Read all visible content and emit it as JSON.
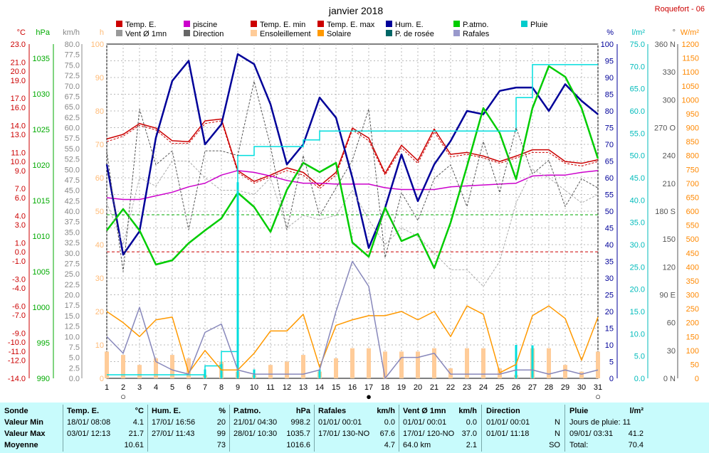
{
  "header": {
    "title": "janvier 2018",
    "station": "Roquefort - 06"
  },
  "legend": [
    {
      "label": "Temp. E.",
      "color": "#cc0000"
    },
    {
      "label": "piscine",
      "color": "#cc00cc"
    },
    {
      "label": "Temp. E. min",
      "color": "#cc0000"
    },
    {
      "label": "Temp. E. max",
      "color": "#cc0000"
    },
    {
      "label": "Hum. E.",
      "color": "#000099"
    },
    {
      "label": "P.atmo.",
      "color": "#00cc00"
    },
    {
      "label": "Pluie",
      "color": "#00cccc"
    },
    {
      "label": "Vent Ø 1mn",
      "color": "#999999"
    },
    {
      "label": "Direction",
      "color": "#666666"
    },
    {
      "label": "Ensoleillement",
      "color": "#ffcc99"
    },
    {
      "label": "Solaire",
      "color": "#ff9900"
    },
    {
      "label": "P. de rosée",
      "color": "#006666"
    },
    {
      "label": "Rafales",
      "color": "#9999cc"
    }
  ],
  "axis_units": {
    "temp": "°C",
    "press": "hPa",
    "wind": "km/h",
    "h": "h",
    "hum": "%",
    "rain": "l/m²",
    "dir": "°",
    "solar": "W/m²"
  },
  "chart_data": {
    "type": "line",
    "title": "janvier 2018",
    "x": [
      1,
      2,
      3,
      4,
      5,
      6,
      7,
      8,
      9,
      10,
      11,
      12,
      13,
      14,
      15,
      16,
      17,
      18,
      19,
      20,
      21,
      22,
      23,
      24,
      25,
      26,
      27,
      28,
      29,
      30,
      31
    ],
    "axes": {
      "temp": {
        "ticks": [
          "23.0",
          "21.0",
          "20.0",
          "19.0",
          "17.0",
          "16.0",
          "14.0",
          "13.0",
          "11.0",
          "10.0",
          "9.0",
          "7.0",
          "6.0",
          "4.0",
          "3.0",
          "1.0",
          "0.0",
          "-1.0",
          "-3.0",
          "-4.0",
          "-6.0",
          "-7.0",
          "-9.0",
          "-10.0",
          "-11.0",
          "-12.0",
          "-14.0"
        ],
        "range": [
          -14,
          23
        ]
      },
      "pressure": {
        "ticks": [
          "1035",
          "1030",
          "1025",
          "1020",
          "1015",
          "1010",
          "1005",
          "1000",
          "995",
          "990"
        ],
        "range": [
          990,
          1037
        ]
      },
      "wind": {
        "ticks": [
          "80.0",
          "77.5",
          "75.0",
          "72.5",
          "70.0",
          "67.5",
          "65.0",
          "62.5",
          "60.0",
          "57.5",
          "55.0",
          "52.5",
          "50.0",
          "47.5",
          "45.0",
          "42.5",
          "40.0",
          "37.5",
          "35.0",
          "32.5",
          "30.0",
          "27.5",
          "25.0",
          "22.5",
          "20.0",
          "17.5",
          "15.0",
          "12.5",
          "10.0",
          "7.5",
          "5.0",
          "2.5",
          "0.0"
        ],
        "range": [
          0,
          80
        ]
      },
      "sunshine": {
        "ticks": [
          "100",
          "90",
          "80",
          "70",
          "60",
          "50",
          "40",
          "30",
          "20",
          "10",
          "0"
        ],
        "range": [
          0,
          100
        ]
      },
      "humidity": {
        "ticks": [
          "100",
          "95",
          "90",
          "85",
          "80",
          "75",
          "70",
          "65",
          "60",
          "55",
          "50",
          "45",
          "40",
          "35",
          "30",
          "25",
          "20",
          "15",
          "10",
          "5",
          "0"
        ],
        "range": [
          0,
          100
        ]
      },
      "rain": {
        "ticks": [
          "75.0",
          "70.0",
          "65.0",
          "60.0",
          "55.0",
          "50.0",
          "45.0",
          "40.0",
          "35.0",
          "30.0",
          "25.0",
          "20.0",
          "15.0",
          "10.0",
          "5.0",
          "0.0"
        ],
        "range": [
          0,
          75
        ]
      },
      "direction": {
        "ticks": [
          "360 N",
          "330",
          "300",
          "270 O",
          "240",
          "210",
          "180 S",
          "150",
          "120",
          "90 E",
          "60",
          "30",
          "0 N"
        ],
        "range": [
          0,
          360
        ]
      },
      "solar": {
        "ticks": [
          "1200",
          "1150",
          "1100",
          "1050",
          "1000",
          "950",
          "900",
          "850",
          "800",
          "750",
          "700",
          "650",
          "600",
          "550",
          "500",
          "450",
          "400",
          "350",
          "300",
          "250",
          "200",
          "150",
          "100",
          "50",
          "0"
        ],
        "range": [
          0,
          1200
        ]
      }
    },
    "series": [
      {
        "name": "Temp. E.",
        "color": "#cc0000",
        "dash": false,
        "axis": "temp",
        "values": [
          12.5,
          13.0,
          14.2,
          13.7,
          12.3,
          12.2,
          14.5,
          14.7,
          9.0,
          7.8,
          8.5,
          9.3,
          8.8,
          7.3,
          8.8,
          13.7,
          12.6,
          8.7,
          11.8,
          10.1,
          13.6,
          10.8,
          11.0,
          10.6,
          10.0,
          10.6,
          11.3,
          11.3,
          10.0,
          9.8,
          10.2
        ]
      },
      {
        "name": "Temp. E. min",
        "color": "#cc0000",
        "dash": true,
        "axis": "temp",
        "values": [
          12.2,
          12.8,
          14.0,
          13.5,
          12.0,
          12.0,
          14.2,
          14.5,
          8.8,
          7.6,
          8.3,
          9.0,
          8.5,
          7.0,
          8.5,
          13.5,
          12.3,
          8.5,
          11.5,
          9.8,
          13.3,
          10.5,
          10.8,
          10.4,
          9.8,
          10.4,
          11.0,
          11.0,
          9.8,
          9.5,
          10.0
        ]
      },
      {
        "name": "piscine",
        "color": "#cc00cc",
        "dash": false,
        "axis": "temp",
        "values": [
          6.0,
          5.8,
          5.8,
          6.2,
          6.6,
          7.2,
          7.6,
          8.5,
          9.0,
          8.8,
          8.4,
          7.9,
          7.6,
          7.6,
          7.5,
          7.5,
          7.5,
          7.1,
          6.9,
          6.9,
          6.9,
          7.2,
          7.3,
          7.4,
          7.5,
          7.6,
          8.4,
          8.5,
          8.5,
          8.8,
          9.0
        ]
      },
      {
        "name": "Hum. E.",
        "color": "#000099",
        "dash": false,
        "axis": "humidity",
        "values": [
          64,
          37,
          44,
          72,
          89,
          95,
          70,
          76,
          97,
          94,
          82,
          64,
          70,
          84,
          78,
          60,
          39,
          51,
          67,
          53,
          64,
          71,
          80,
          79,
          86,
          87,
          87,
          80,
          88,
          83,
          79
        ]
      },
      {
        "name": "P.atmo.",
        "color": "#00cc00",
        "dash": false,
        "axis": "pressure",
        "values": [
          1010.8,
          1013.8,
          1010.8,
          1006.0,
          1006.6,
          1009.0,
          1010.8,
          1012.5,
          1016.1,
          1014.1,
          1010.6,
          1016.5,
          1020.3,
          1019.0,
          1020.3,
          1009.1,
          1007.1,
          1014.0,
          1009.3,
          1010.3,
          1005.5,
          1011.9,
          1019.8,
          1028.0,
          1024.5,
          1018.0,
          1028.0,
          1033.9,
          1032.4,
          1028.0,
          1020.9
        ]
      },
      {
        "name": "Pluie",
        "color": "#00dddd",
        "dash": false,
        "axis": "rain",
        "values": [
          0.8,
          0.8,
          0.8,
          0.8,
          0.8,
          0.8,
          2.8,
          6.0,
          50.0,
          52.0,
          52.0,
          52.0,
          53.5,
          55.5,
          55.5,
          55.5,
          55.5,
          55.5,
          55.5,
          55.5,
          55.5,
          55.5,
          55.5,
          55.5,
          55.5,
          63.0,
          70.4,
          70.4,
          70.4,
          70.4,
          70.4
        ]
      },
      {
        "name": "Vent Ø 1mn",
        "color": "#aaaaaa",
        "dash": true,
        "axis": "wind",
        "values": [
          42,
          32,
          48,
          46,
          52,
          52,
          48,
          45,
          45,
          44,
          48,
          36,
          39,
          38,
          39,
          45,
          38,
          32,
          36,
          34,
          30,
          26,
          26,
          22,
          28,
          42,
          50,
          48,
          45,
          42,
          44
        ]
      },
      {
        "name": "Direction",
        "color": "#555555",
        "dash": true,
        "axis": "direction",
        "values": [
          245,
          115,
          290,
          230,
          245,
          160,
          245,
          245,
          240,
          320,
          250,
          160,
          240,
          175,
          205,
          235,
          290,
          130,
          200,
          170,
          215,
          230,
          185,
          255,
          200,
          270,
          220,
          235,
          185,
          215,
          205
        ]
      },
      {
        "name": "Solaire",
        "color": "#ff9900",
        "dash": false,
        "axis": "solar",
        "values": [
          240,
          200,
          150,
          210,
          220,
          20,
          100,
          30,
          30,
          90,
          170,
          170,
          230,
          40,
          190,
          210,
          225,
          225,
          240,
          210,
          240,
          150,
          260,
          230,
          20,
          50,
          225,
          260,
          215,
          65,
          220
        ]
      },
      {
        "name": "Rafales",
        "color": "#8888bb",
        "dash": false,
        "axis": "wind",
        "values": [
          10,
          6,
          17,
          4,
          2,
          1,
          11,
          13,
          2,
          1,
          1,
          1,
          1,
          2,
          16,
          28,
          22,
          0,
          5,
          5,
          6,
          1,
          1,
          1,
          1,
          2,
          2,
          1,
          2,
          1,
          2
        ]
      },
      {
        "name": "Ensoleillement",
        "color": "#ffcc99",
        "dash": false,
        "axis": "sunshine",
        "type": "bar",
        "values": [
          8,
          7,
          4,
          6,
          7,
          6,
          1,
          5,
          2,
          1,
          4,
          5,
          7,
          2,
          6,
          9,
          9,
          8,
          8,
          8,
          9,
          3,
          9,
          9,
          3,
          1,
          9,
          9,
          4,
          2,
          8
        ]
      }
    ],
    "reference_lines": [
      {
        "axis": "temp",
        "value": 0.0,
        "color": "#cc0000"
      },
      {
        "axis": "pressure",
        "value": 1013.0,
        "color": "#00aa00"
      }
    ],
    "markers": [
      {
        "day": 2,
        "symbol": "○"
      },
      {
        "day": 17,
        "symbol": "●"
      },
      {
        "day": 31,
        "symbol": "○"
      }
    ]
  },
  "stats": {
    "sonde": {
      "title": "Sonde",
      "rows": [
        "Valeur Min",
        "Valeur Max",
        "Moyenne"
      ]
    },
    "temp": {
      "title": "Temp. E.",
      "unit": "°C",
      "rows": [
        [
          "18/01/ 08:08",
          "4.1"
        ],
        [
          "03/01/ 12:13",
          "21.7"
        ],
        [
          "",
          "10.61"
        ]
      ]
    },
    "hum": {
      "title": "Hum. E.",
      "unit": "%",
      "rows": [
        [
          "17/01/ 16:56",
          "20"
        ],
        [
          "27/01/ 11:43",
          "99"
        ],
        [
          "",
          "73"
        ]
      ]
    },
    "press": {
      "title": "P.atmo.",
      "unit": "hPa",
      "rows": [
        [
          "21/01/ 04:30",
          "998.2"
        ],
        [
          "28/01/ 10:30",
          "1035.7"
        ],
        [
          "",
          "1016.6"
        ]
      ]
    },
    "gust": {
      "title": "Rafales",
      "unit": "km/h",
      "rows": [
        [
          "01/01/ 00:01",
          "0.0"
        ],
        [
          "17/01/ 130-NO",
          "67.6"
        ],
        [
          "",
          "4.7"
        ]
      ]
    },
    "wind": {
      "title": "Vent Ø 1mn",
      "unit": "km/h",
      "rows": [
        [
          "01/01/ 00:01",
          "0.0"
        ],
        [
          "17/01/ 120-NO",
          "37.0"
        ],
        [
          "64.0 km",
          "2.1"
        ]
      ]
    },
    "dir": {
      "title": "Direction",
      "rows": [
        [
          "01/01/ 00:01",
          "N"
        ],
        [
          "01/01/ 11:18",
          "N"
        ],
        [
          "",
          "SO"
        ]
      ]
    },
    "rain": {
      "title": "Pluie",
      "unit": "l/m²",
      "rows": [
        [
          "Jours de pluie: 11",
          ""
        ],
        [
          "09/01/ 03:31",
          "41.2"
        ],
        [
          "Total:",
          "70.4"
        ]
      ]
    }
  }
}
